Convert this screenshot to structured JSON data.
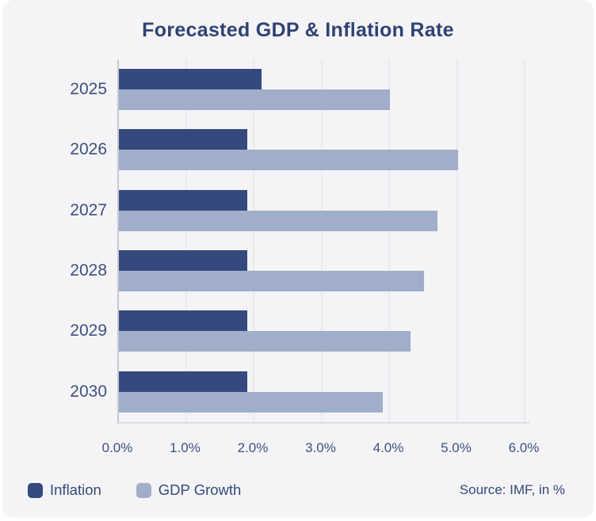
{
  "page": {
    "title": "Forecasted GDP & Inflation Rate",
    "source_note": "Source: IMF, in %"
  },
  "colors": {
    "card_bg": "#F4F4F6",
    "title_text": "#2E4274",
    "label_text": "#3D5080",
    "inflation_bar": "#35497E",
    "gdp_growth_bar": "#A0AEC9",
    "grid_line": "#E9EAEE",
    "axis_line": "#C6C9D1"
  },
  "legend": {
    "items": [
      {
        "label": "Inflation",
        "color": "#35497E"
      },
      {
        "label": "GDP Growth",
        "color": "#A0AEC9"
      }
    ]
  },
  "chart_data": {
    "type": "bar",
    "orientation": "horizontal",
    "title": "Forecasted GDP & Inflation Rate",
    "categories": [
      "2025",
      "2026",
      "2027",
      "2028",
      "2029",
      "2030"
    ],
    "series": [
      {
        "name": "Inflation",
        "color": "#35497E",
        "values": [
          2.1,
          1.9,
          1.9,
          1.9,
          1.9,
          1.9
        ]
      },
      {
        "name": "GDP Growth",
        "color": "#A0AEC9",
        "values": [
          4.0,
          5.0,
          4.7,
          4.5,
          4.3,
          3.9
        ]
      }
    ],
    "x_ticks": [
      "0.0%",
      "1.0%",
      "2.0%",
      "3.0%",
      "4.0%",
      "5.0%",
      "6.0%"
    ],
    "xlim": [
      0,
      6
    ],
    "grid": true,
    "legend_position": "bottom-left",
    "source": "Source: IMF, in %",
    "unit": "%"
  }
}
